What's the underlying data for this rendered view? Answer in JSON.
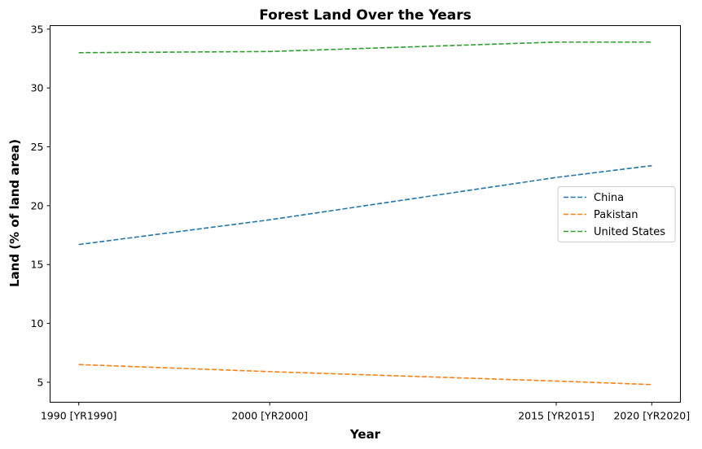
{
  "chart_data": {
    "type": "line",
    "title": "Forest Land Over the Years",
    "xlabel": "Year",
    "ylabel": "Land (% of land area)",
    "categories": [
      "1990 [YR1990]",
      "2000 [YR2000]",
      "2015 [YR2015]",
      "2020 [YR2020]"
    ],
    "ylim": [
      3.3,
      35.3
    ],
    "yticks": [
      5,
      10,
      15,
      20,
      25,
      30,
      35
    ],
    "grid": false,
    "legend_position": "center-right",
    "line_style": "dashed",
    "series": [
      {
        "name": "China",
        "color": "#1f77b4",
        "values": [
          16.7,
          18.8,
          22.4,
          23.4
        ]
      },
      {
        "name": "Pakistan",
        "color": "#ff7f0e",
        "values": [
          6.5,
          5.9,
          5.1,
          4.8
        ]
      },
      {
        "name": "United States",
        "color": "#2ca02c",
        "values": [
          33.0,
          33.1,
          33.9,
          33.9
        ]
      }
    ]
  }
}
